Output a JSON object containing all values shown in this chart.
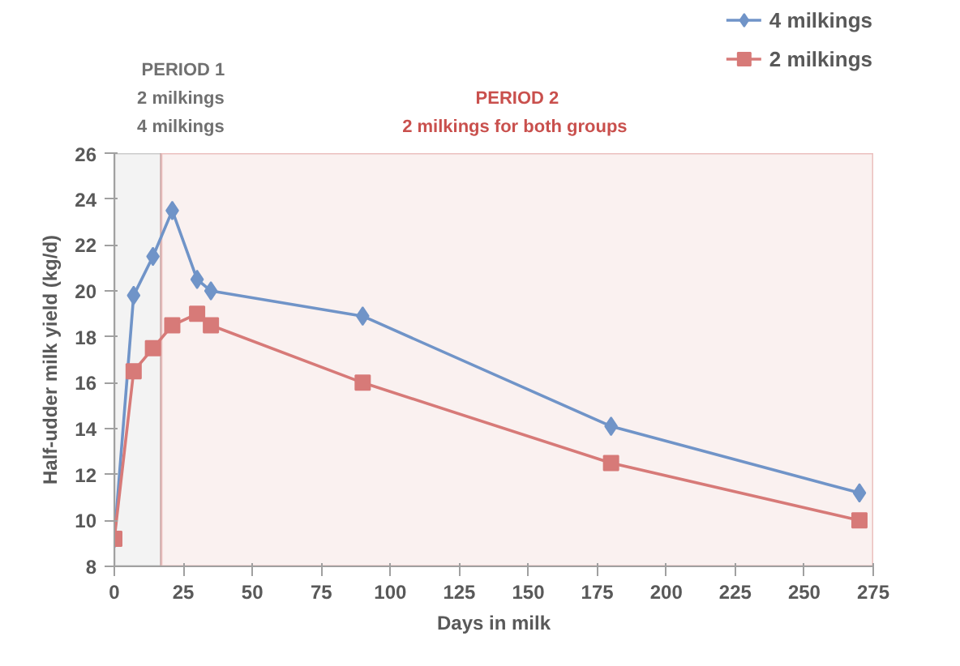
{
  "chart_data": {
    "type": "line",
    "xlabel": "Days in milk",
    "ylabel": "Half-udder milk yield (kg/d)",
    "x": [
      0,
      7,
      14,
      21,
      30,
      35,
      90,
      180,
      270
    ],
    "series": [
      {
        "name": "4 milkings",
        "color": "#7094c8",
        "marker": "diamond",
        "values": [
          9.2,
          19.8,
          21.5,
          23.5,
          20.5,
          20.0,
          18.9,
          14.1,
          11.2
        ]
      },
      {
        "name": "2 milkings",
        "color": "#d77a78",
        "marker": "square",
        "values": [
          9.2,
          16.5,
          17.5,
          18.5,
          19.0,
          18.5,
          16.0,
          12.5,
          10.0
        ]
      }
    ],
    "xlim": [
      0,
      275
    ],
    "xticks": [
      0,
      25,
      50,
      75,
      100,
      125,
      150,
      175,
      200,
      225,
      250,
      275
    ],
    "ylim": [
      8,
      26
    ],
    "yticks": [
      8,
      10,
      12,
      14,
      16,
      18,
      20,
      22,
      24,
      26
    ],
    "bands": [
      {
        "axis": "x",
        "from": 0,
        "to": 17,
        "label": "PERIOD 1\n2  milkings\n4  milkings",
        "color": "#707070"
      },
      {
        "axis": "x",
        "from": 17,
        "to": 275,
        "label": "PERIOD 2\n2  milkings for both groups",
        "color": "#c9504d"
      }
    ],
    "grid": false,
    "legend": "top right",
    "line_style": "solid"
  }
}
